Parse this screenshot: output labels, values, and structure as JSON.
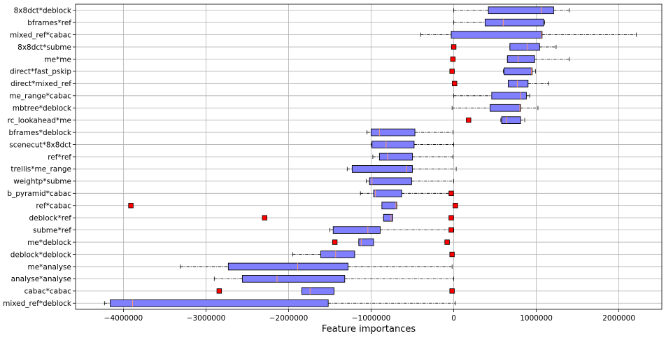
{
  "chart_data": {
    "type": "boxplot",
    "orientation": "horizontal",
    "xlabel": "Feature importances",
    "x_ticks": [
      -4000000,
      -3000000,
      -2000000,
      -1000000,
      0,
      1000000,
      2000000
    ],
    "x_tick_labels": [
      "−4000000",
      "−3000000",
      "−2000000",
      "−1000000",
      "0",
      "1000000",
      "2000000"
    ],
    "xlim": [
      -4580000,
      2520000
    ],
    "grid": true,
    "colors": {
      "box_fill": "#8080ff",
      "box_edge": "#000000",
      "median": "#ff9966",
      "flier": "#ff0000",
      "grid": "#b0b0b0"
    },
    "categories": [
      "8x8dct*deblock",
      "bframes*ref",
      "mixed_ref*cabac",
      "8x8dct*subme",
      "me*me",
      "direct*fast_pskip",
      "direct*mixed_ref",
      "me_range*cabac",
      "mbtree*deblock",
      "rc_lookahead*me",
      "bframes*deblock",
      "scenecut*8x8dct",
      "ref*ref",
      "trellis*me_range",
      "weightp*subme",
      "b_pyramid*cabac",
      "ref*cabac",
      "deblock*ref",
      "subme*ref",
      "me*deblock",
      "deblock*deblock",
      "me*analyse",
      "analyse*analyse",
      "cabac*cabac",
      "mixed_ref*deblock"
    ],
    "boxes": [
      {
        "whislo": 0,
        "q1": 420000,
        "med": 1060000,
        "q3": 1210000,
        "whishi": 1400000,
        "fliers": []
      },
      {
        "whislo": 0,
        "q1": 380000,
        "med": 600000,
        "q3": 1090000,
        "whishi": 1100000,
        "fliers": []
      },
      {
        "whislo": -400000,
        "q1": -30000,
        "med": 1060000,
        "q3": 1070000,
        "whishi": 2210000,
        "fliers": []
      },
      {
        "whislo": 680000,
        "q1": 680000,
        "med": 890000,
        "q3": 1040000,
        "whishi": 1240000,
        "fliers": [
          0
        ]
      },
      {
        "whislo": 650000,
        "q1": 650000,
        "med": 780000,
        "q3": 980000,
        "whishi": 1400000,
        "fliers": [
          -10000
        ]
      },
      {
        "whislo": 600000,
        "q1": 610000,
        "med": 940000,
        "q3": 950000,
        "whishi": 990000,
        "fliers": [
          -20000
        ]
      },
      {
        "whislo": 660000,
        "q1": 660000,
        "med": 770000,
        "q3": 900000,
        "whishi": 1150000,
        "fliers": [
          10000
        ]
      },
      {
        "whislo": 0,
        "q1": 460000,
        "med": 810000,
        "q3": 880000,
        "whishi": 920000,
        "fliers": []
      },
      {
        "whislo": -20000,
        "q1": 440000,
        "med": 800000,
        "q3": 810000,
        "whishi": 1020000,
        "fliers": []
      },
      {
        "whislo": 570000,
        "q1": 580000,
        "med": 640000,
        "q3": 810000,
        "whishi": 860000,
        "fliers": [
          180000
        ]
      },
      {
        "whislo": -1050000,
        "q1": -1000000,
        "med": -900000,
        "q3": -470000,
        "whishi": -10000,
        "fliers": []
      },
      {
        "whislo": -1000000,
        "q1": -990000,
        "med": -820000,
        "q3": -480000,
        "whishi": 0,
        "fliers": []
      },
      {
        "whislo": -980000,
        "q1": -900000,
        "med": -800000,
        "q3": -500000,
        "whishi": -10000,
        "fliers": []
      },
      {
        "whislo": -1290000,
        "q1": -1230000,
        "med": -570000,
        "q3": -500000,
        "whishi": 30000,
        "fliers": []
      },
      {
        "whislo": -1060000,
        "q1": -1020000,
        "med": -990000,
        "q3": -510000,
        "whishi": 0,
        "fliers": []
      },
      {
        "whislo": -1130000,
        "q1": -970000,
        "med": -950000,
        "q3": -630000,
        "whishi": -30000,
        "fliers": [
          -30000
        ]
      },
      {
        "whislo": -870000,
        "q1": -870000,
        "med": -700000,
        "q3": -690000,
        "whishi": -690000,
        "fliers": [
          -3910000,
          20000
        ]
      },
      {
        "whislo": -850000,
        "q1": -850000,
        "med": -760000,
        "q3": -740000,
        "whishi": -740000,
        "fliers": [
          -2290000,
          -30000
        ]
      },
      {
        "whislo": -1500000,
        "q1": -1460000,
        "med": -1040000,
        "q3": -890000,
        "whishi": 0,
        "fliers": [
          -30000
        ]
      },
      {
        "whislo": -1150000,
        "q1": -1150000,
        "med": -1120000,
        "q3": -970000,
        "whishi": -970000,
        "fliers": [
          -1440000,
          -80000
        ]
      },
      {
        "whislo": -1950000,
        "q1": -1610000,
        "med": -1430000,
        "q3": -1200000,
        "whishi": -1200000,
        "fliers": [
          -20000
        ]
      },
      {
        "whislo": -3310000,
        "q1": -2730000,
        "med": -1890000,
        "q3": -1280000,
        "whishi": -20000,
        "fliers": []
      },
      {
        "whislo": -2900000,
        "q1": -2560000,
        "med": -2140000,
        "q3": -1320000,
        "whishi": 0,
        "fliers": []
      },
      {
        "whislo": -1840000,
        "q1": -1840000,
        "med": -1740000,
        "q3": -1450000,
        "whishi": -1450000,
        "fliers": [
          -2840000,
          -20000
        ]
      },
      {
        "whislo": -4230000,
        "q1": -4160000,
        "med": -3890000,
        "q3": -1520000,
        "whishi": 20000,
        "fliers": []
      }
    ]
  }
}
